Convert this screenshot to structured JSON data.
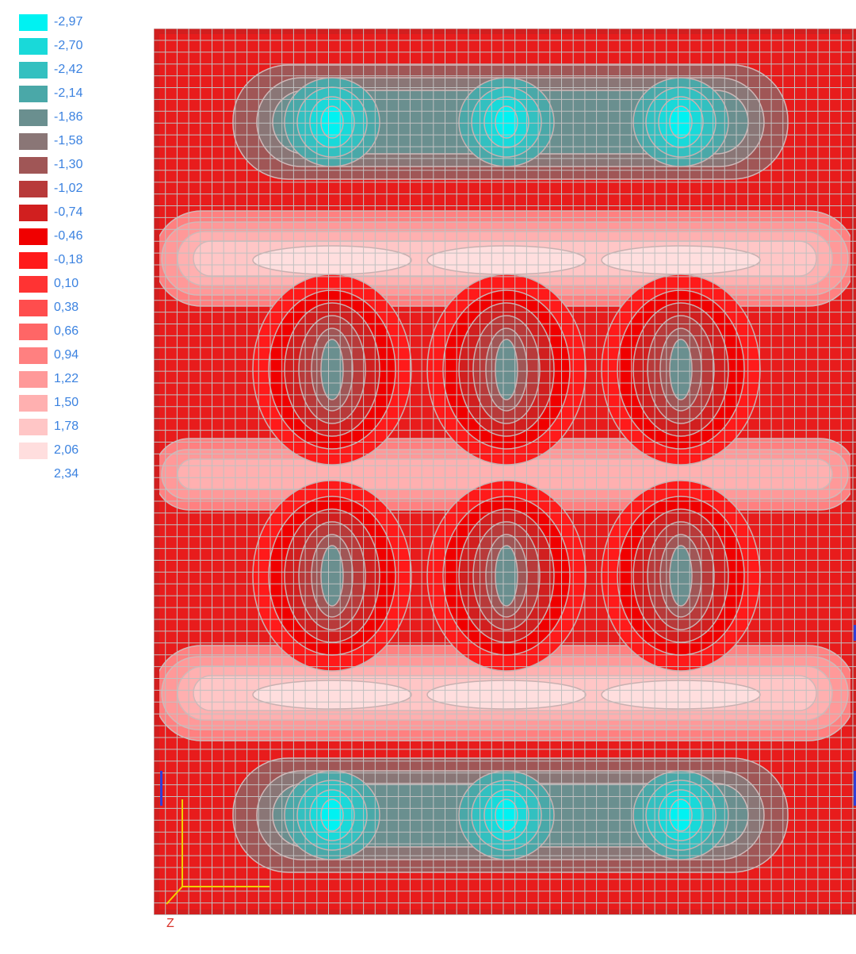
{
  "legend": {
    "entries": [
      {
        "label": "-2,97",
        "color": "#00f2f2"
      },
      {
        "label": "-2,70",
        "color": "#19d9d9"
      },
      {
        "label": "-2,42",
        "color": "#33c0c0"
      },
      {
        "label": "-2,14",
        "color": "#4aa8a8"
      },
      {
        "label": "-1,86",
        "color": "#6a8f8f"
      },
      {
        "label": "-1,58",
        "color": "#8a7676"
      },
      {
        "label": "-1,30",
        "color": "#a05656"
      },
      {
        "label": "-1,02",
        "color": "#b83a3a"
      },
      {
        "label": "-0,74",
        "color": "#d11f1f"
      },
      {
        "label": "-0,46",
        "color": "#f00000"
      },
      {
        "label": "-0,18",
        "color": "#ff1a1a"
      },
      {
        "label": "0,10",
        "color": "#ff3333"
      },
      {
        "label": "0,38",
        "color": "#ff4d4d"
      },
      {
        "label": "0,66",
        "color": "#ff6666"
      },
      {
        "label": "0,94",
        "color": "#ff8080"
      },
      {
        "label": "1,22",
        "color": "#ff9999"
      },
      {
        "label": "1,50",
        "color": "#ffb0b0"
      },
      {
        "label": "1,78",
        "color": "#ffc6c6"
      },
      {
        "label": "2,06",
        "color": "#ffdede"
      },
      {
        "label": "2,34",
        "color": "#ffffff"
      }
    ]
  },
  "axis": {
    "z_label": "Z",
    "axis_color": "#f2d000",
    "label_color": "#d9342b"
  },
  "mesh": {
    "grid_color": "#c0c0c0"
  }
}
